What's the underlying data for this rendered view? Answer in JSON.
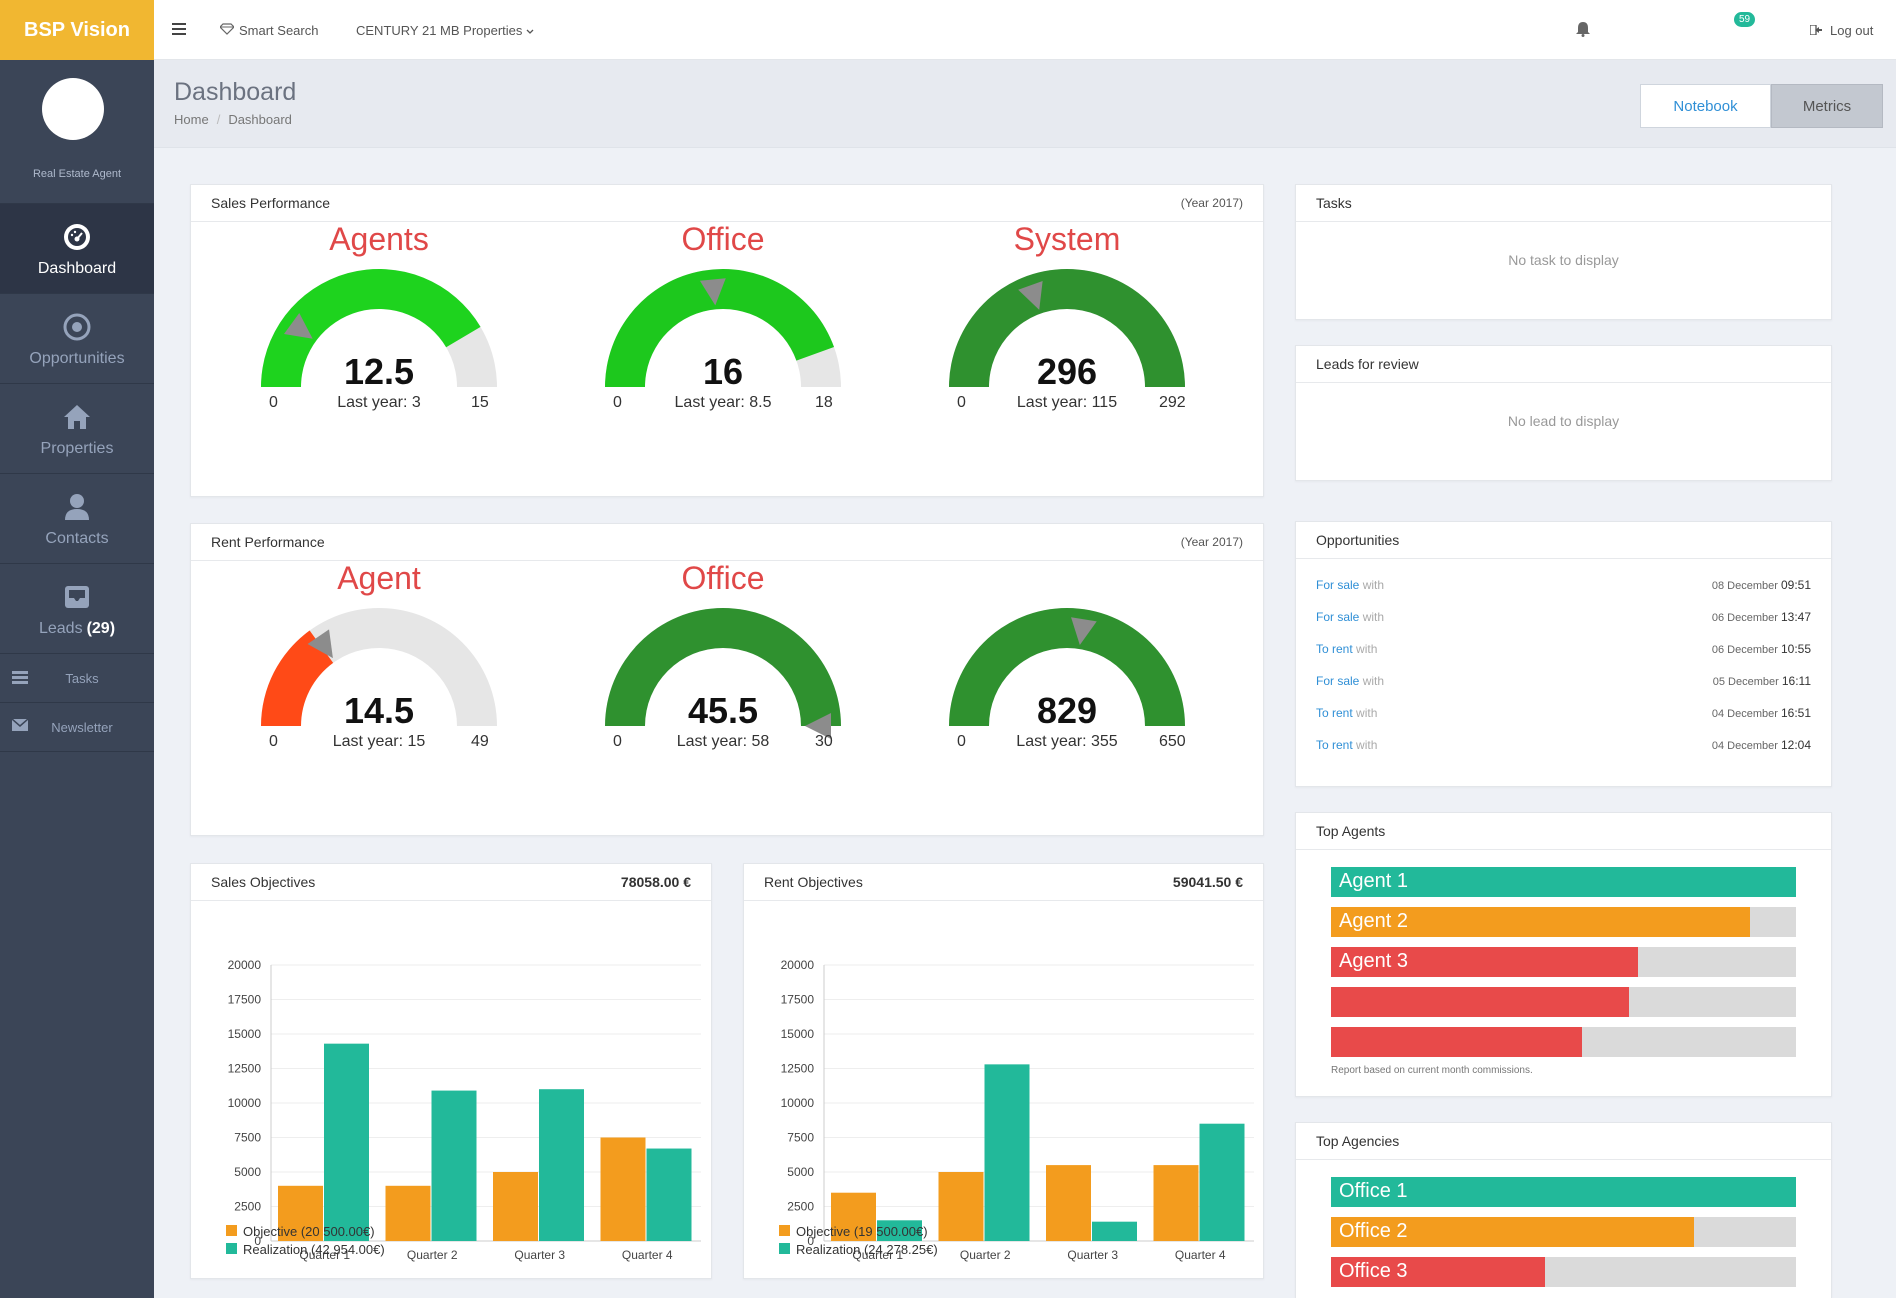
{
  "brand": "BSP Vision",
  "profile": {
    "role": "Real Estate Agent"
  },
  "nav": {
    "dashboard": "Dashboard",
    "opportunities": "Opportunities",
    "properties": "Properties",
    "contacts": "Contacts",
    "leads": "Leads",
    "leads_count": "(29)",
    "tasks": "Tasks",
    "newsletter": "Newsletter"
  },
  "topbar": {
    "smart_search": "Smart Search",
    "agency": "CENTURY 21 MB Properties",
    "notifications": "59",
    "logout": "Log out"
  },
  "page": {
    "title": "Dashboard",
    "breadcrumb": [
      "Home",
      "Dashboard"
    ],
    "tab_notebook": "Notebook",
    "tab_metrics": "Metrics"
  },
  "sales_performance": {
    "title": "Sales Performance",
    "year": "(Year 2017)",
    "gauges": [
      {
        "title": "Agents",
        "value": "12.5",
        "last_year": "Last year: 3",
        "min": "0",
        "max": "15",
        "fill": 0.83,
        "marker": 0.2,
        "color": "#1ed31e"
      },
      {
        "title": "Office",
        "value": "16",
        "last_year": "Last year: 8.5",
        "min": "0",
        "max": "18",
        "fill": 0.89,
        "marker": 0.47,
        "color": "#1dc81d"
      },
      {
        "title": "System",
        "value": "296",
        "last_year": "Last year: 115",
        "min": "0",
        "max": "292",
        "fill": 1.0,
        "marker": 0.39,
        "color": "#2f912f"
      }
    ]
  },
  "rent_performance": {
    "title": "Rent Performance",
    "year": "(Year 2017)",
    "gauges": [
      {
        "title": "Agent",
        "value": "14.5",
        "last_year": "Last year: 15",
        "min": "0",
        "max": "49",
        "fill": 0.3,
        "marker": 0.31,
        "color": "#ff4a17"
      },
      {
        "title": "Office",
        "value": "45.5",
        "last_year": "Last year: 58",
        "min": "0",
        "max": "30",
        "fill": 1.0,
        "marker": 1.0,
        "color": "#2f912f"
      },
      {
        "title": "",
        "value": "829",
        "last_year": "Last year: 355",
        "min": "0",
        "max": "650",
        "fill": 1.0,
        "marker": 0.55,
        "color": "#2f912f"
      }
    ]
  },
  "sales_objectives": {
    "title": "Sales Objectives",
    "amount": "78058.00 €",
    "legend_objective": "Objective",
    "legend_objective_value": "(20 500.00€)",
    "legend_realization": "Realization",
    "legend_realization_value": "(42 954.00€)"
  },
  "rent_objectives": {
    "title": "Rent Objectives",
    "amount": "59041.50 €",
    "legend_objective": "Objective",
    "legend_objective_value": "(19 500.00€)",
    "legend_realization": "Realization",
    "legend_realization_value": "(24 278.25€)"
  },
  "chart_data": [
    {
      "type": "bar",
      "title": "Sales Objectives",
      "categories": [
        "Quarter 1",
        "Quarter 2",
        "Quarter 3",
        "Quarter 4"
      ],
      "series": [
        {
          "name": "Objective (20 500.00€)",
          "values": [
            4000,
            4000,
            5000,
            7500
          ],
          "color": "#f39c1e"
        },
        {
          "name": "Realization (42 954.00€)",
          "values": [
            14300,
            10900,
            11000,
            6700
          ],
          "color": "#22b99a"
        }
      ],
      "ylim": [
        0,
        20000
      ],
      "yticks": [
        "0",
        "2500",
        "5000",
        "7500",
        "10000",
        "12500",
        "15000",
        "17500",
        "20000"
      ],
      "legend": "bottom-left"
    },
    {
      "type": "bar",
      "title": "Rent Objectives",
      "categories": [
        "Quarter 1",
        "Quarter 2",
        "Quarter 3",
        "Quarter 4"
      ],
      "series": [
        {
          "name": "Objective (19 500.00€)",
          "values": [
            3500,
            5000,
            5500,
            5500
          ],
          "color": "#f39c1e"
        },
        {
          "name": "Realization (24 278.25€)",
          "values": [
            1500,
            12800,
            1400,
            8500
          ],
          "color": "#22b99a"
        }
      ],
      "ylim": [
        0,
        20000
      ],
      "yticks": [
        "0",
        "2500",
        "5000",
        "7500",
        "10000",
        "12500",
        "15000",
        "17500",
        "20000"
      ],
      "legend": "bottom-left"
    }
  ],
  "tasks": {
    "title": "Tasks",
    "empty": "No task to display"
  },
  "leads": {
    "title": "Leads for review",
    "empty": "No lead to display"
  },
  "opportunities": {
    "title": "Opportunities",
    "rows": [
      {
        "type": "For sale",
        "with": "with",
        "date": "08 December",
        "time": "09:51"
      },
      {
        "type": "For sale",
        "with": "with",
        "date": "06 December",
        "time": "13:47"
      },
      {
        "type": "To rent",
        "with": "with",
        "date": "06 December",
        "time": "10:55"
      },
      {
        "type": "For sale",
        "with": "with",
        "date": "05 December",
        "time": "16:11"
      },
      {
        "type": "To rent",
        "with": "with",
        "date": "04 December",
        "time": "16:51"
      },
      {
        "type": "To rent",
        "with": "with",
        "date": "04 December",
        "time": "12:04"
      }
    ]
  },
  "top_agents": {
    "title": "Top Agents",
    "bars": [
      {
        "label": "Agent 1",
        "fraction": 1.0,
        "color": "#22b99a"
      },
      {
        "label": "Agent 2",
        "fraction": 0.9,
        "color": "#f39c1e"
      },
      {
        "label": "Agent 3",
        "fraction": 0.66,
        "color": "#e84a4a"
      },
      {
        "label": "",
        "fraction": 0.64,
        "color": "#e84a4a"
      },
      {
        "label": "",
        "fraction": 0.54,
        "color": "#e84a4a"
      }
    ],
    "note": "Report based on current month commissions."
  },
  "top_agencies": {
    "title": "Top Agencies",
    "bars": [
      {
        "label": "Office 1",
        "fraction": 1.0,
        "color": "#22b99a"
      },
      {
        "label": "Office 2",
        "fraction": 0.78,
        "color": "#f39c1e"
      },
      {
        "label": "Office 3",
        "fraction": 0.46,
        "color": "#e84a4a"
      }
    ]
  }
}
